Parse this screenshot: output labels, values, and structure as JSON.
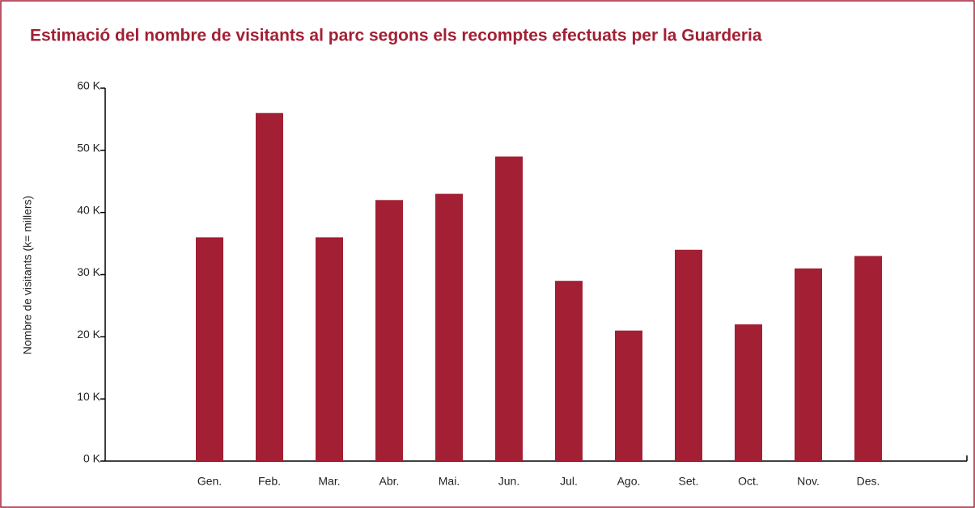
{
  "chart_data": {
    "type": "bar",
    "title": "Estimació del nombre de visitants al parc segons els recomptes efectuats per la Guarderia",
    "y_label": "Nombre de visitants (k= millers)",
    "categories": [
      "Gen.",
      "Feb.",
      "Mar.",
      "Abr.",
      "Mai.",
      "Jun.",
      "Jul.",
      "Ago.",
      "Set.",
      "Oct.",
      "Nov.",
      "Des."
    ],
    "values": [
      36,
      56,
      36,
      42,
      43,
      49,
      29,
      21,
      34,
      22,
      31,
      33
    ],
    "color": "#a31f34",
    "ylim": [
      0,
      60
    ],
    "yticks": [
      {
        "value": 0,
        "label": "0 K"
      },
      {
        "value": 10,
        "label": "10 K"
      },
      {
        "value": 20,
        "label": "20 K"
      },
      {
        "value": 30,
        "label": "30 K"
      },
      {
        "value": 40,
        "label": "40 K"
      },
      {
        "value": 50,
        "label": "50 K"
      },
      {
        "value": 60,
        "label": "60 K"
      }
    ],
    "grid": false
  }
}
